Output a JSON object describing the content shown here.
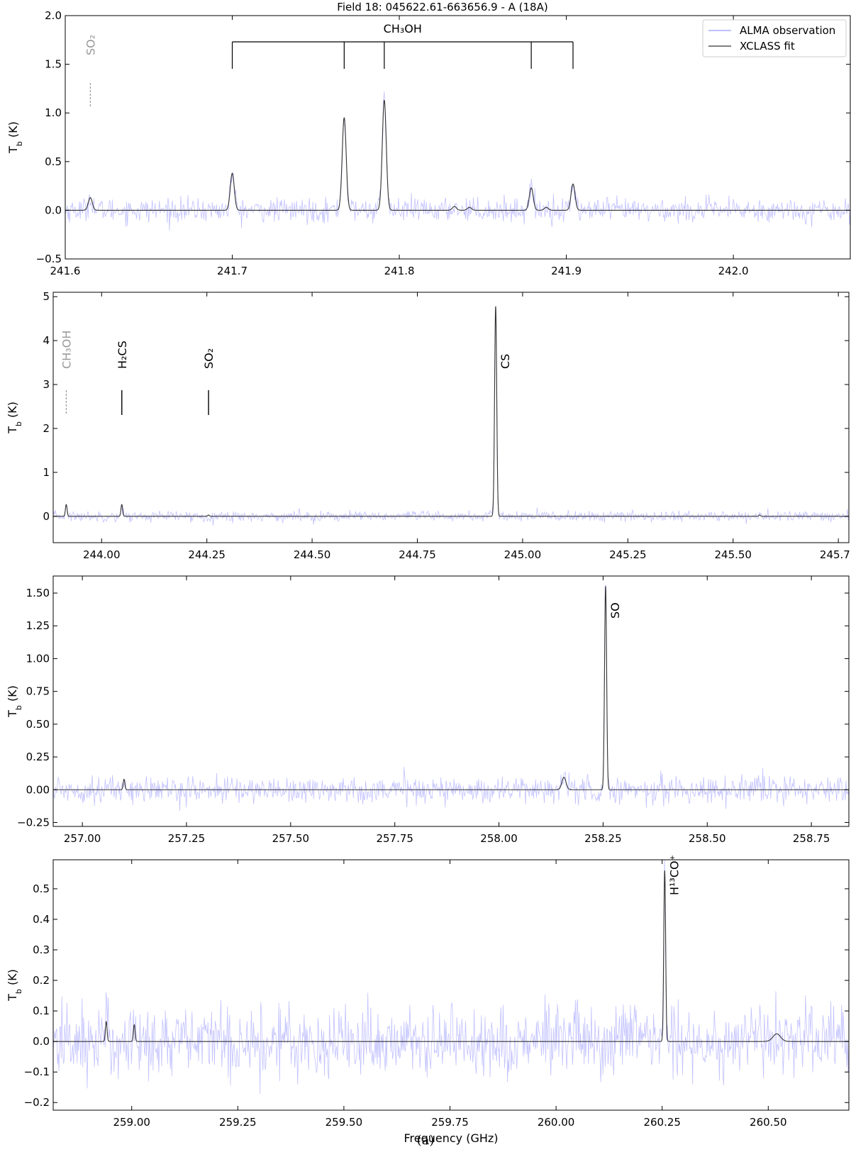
{
  "figure": {
    "title": "Field 18: 045622.61-663656.9 - A (18A)",
    "caption": "(a)",
    "colors": {
      "observation": "#9999ff",
      "fit": "#333333",
      "tentative": "#999999"
    }
  },
  "chart_data": [
    {
      "type": "line",
      "xlabel": "",
      "ylabel": "T_b (K)",
      "xlim": [
        241.6,
        242.07
      ],
      "ylim": [
        -0.5,
        2.0
      ],
      "xticks": [
        "241.6",
        "241.7",
        "241.8",
        "241.9",
        "242.0"
      ],
      "yticks": [
        "−0.5",
        "0.0",
        "0.5",
        "1.0",
        "1.5",
        "2.0"
      ],
      "grid": false,
      "legend": {
        "position": "top-right",
        "entries": [
          "ALMA observation",
          "XCLASS fit"
        ]
      },
      "noise_rms": 0.06,
      "series": [
        {
          "name": "XCLASS fit",
          "lines": [
            {
              "x": 241.615,
              "y": 0.13,
              "w": 0.0012
            },
            {
              "x": 241.7,
              "y": 0.38,
              "w": 0.0012
            },
            {
              "x": 241.767,
              "y": 0.95,
              "w": 0.0012
            },
            {
              "x": 241.791,
              "y": 1.13,
              "w": 0.0012
            },
            {
              "x": 241.833,
              "y": 0.04,
              "w": 0.0012
            },
            {
              "x": 241.842,
              "y": 0.03,
              "w": 0.0012
            },
            {
              "x": 241.879,
              "y": 0.23,
              "w": 0.0012
            },
            {
              "x": 241.888,
              "y": 0.03,
              "w": 0.0012
            },
            {
              "x": 241.904,
              "y": 0.27,
              "w": 0.0012
            }
          ]
        }
      ],
      "annotations": [
        {
          "label": "SO₂",
          "x": 241.615,
          "style": "tentative"
        },
        {
          "label": "CH₃OH",
          "style": "group",
          "xs": [
            241.7,
            241.767,
            241.791,
            241.879,
            241.904
          ]
        }
      ]
    },
    {
      "type": "line",
      "xlabel": "",
      "ylabel": "T_b (K)",
      "xlim": [
        243.885,
        245.775
      ],
      "ylim": [
        -0.6,
        5.1
      ],
      "xticks": [
        "244.00",
        "244.25",
        "244.50",
        "244.75",
        "245.00",
        "245.25",
        "245.50",
        "245.75"
      ],
      "yticks": [
        "0",
        "1",
        "2",
        "3",
        "4",
        "5"
      ],
      "grid": false,
      "noise_rms": 0.06,
      "series": [
        {
          "name": "XCLASS fit",
          "lines": [
            {
              "x": 243.916,
              "y": 0.27,
              "w": 0.002
            },
            {
              "x": 244.048,
              "y": 0.27,
              "w": 0.002
            },
            {
              "x": 244.254,
              "y": 0.03,
              "w": 0.002
            },
            {
              "x": 244.936,
              "y": 4.78,
              "w": 0.0025
            },
            {
              "x": 245.563,
              "y": 0.03,
              "w": 0.002
            }
          ]
        }
      ],
      "annotations": [
        {
          "label": "CH₃OH",
          "x": 243.916,
          "style": "tentative"
        },
        {
          "label": "H₂CS",
          "x": 244.048,
          "style": "solid"
        },
        {
          "label": "SO₂",
          "x": 244.254,
          "style": "solid"
        },
        {
          "label": "CS",
          "x": 244.936,
          "style": "peak"
        }
      ]
    },
    {
      "type": "line",
      "xlabel": "",
      "ylabel": "T_b (K)",
      "xlim": [
        256.93,
        258.84
      ],
      "ylim": [
        -0.28,
        1.63
      ],
      "xticks": [
        "257.00",
        "257.25",
        "257.50",
        "257.75",
        "258.00",
        "258.25",
        "258.50",
        "258.75"
      ],
      "yticks": [
        "−0.25",
        "0.00",
        "0.25",
        "0.50",
        "0.75",
        "1.00",
        "1.25",
        "1.50"
      ],
      "grid": false,
      "noise_rms": 0.05,
      "series": [
        {
          "name": "XCLASS fit",
          "lines": [
            {
              "x": 257.1,
              "y": 0.08,
              "w": 0.002
            },
            {
              "x": 258.156,
              "y": 0.095,
              "w": 0.005
            },
            {
              "x": 258.256,
              "y": 1.55,
              "w": 0.0025
            }
          ]
        }
      ],
      "annotations": [
        {
          "label": "SO",
          "x": 258.256,
          "style": "peak"
        }
      ]
    },
    {
      "type": "line",
      "xlabel": "Frequency (GHz)",
      "ylabel": "T_b (K)",
      "xlim": [
        258.815,
        260.69
      ],
      "ylim": [
        -0.225,
        0.595
      ],
      "xticks": [
        "259.00",
        "259.25",
        "259.50",
        "259.75",
        "260.00",
        "260.25",
        "260.50"
      ],
      "yticks": [
        "−0.2",
        "−0.1",
        "0.0",
        "0.1",
        "0.2",
        "0.3",
        "0.4",
        "0.5"
      ],
      "grid": false,
      "noise_rms": 0.06,
      "series": [
        {
          "name": "XCLASS fit",
          "lines": [
            {
              "x": 258.94,
              "y": 0.065,
              "w": 0.002
            },
            {
              "x": 259.006,
              "y": 0.055,
              "w": 0.002
            },
            {
              "x": 260.256,
              "y": 0.56,
              "w": 0.0022
            },
            {
              "x": 260.52,
              "y": 0.025,
              "w": 0.009
            }
          ]
        }
      ],
      "annotations": [
        {
          "label": "H¹³CO⁺",
          "x": 260.256,
          "style": "peak"
        }
      ]
    }
  ]
}
